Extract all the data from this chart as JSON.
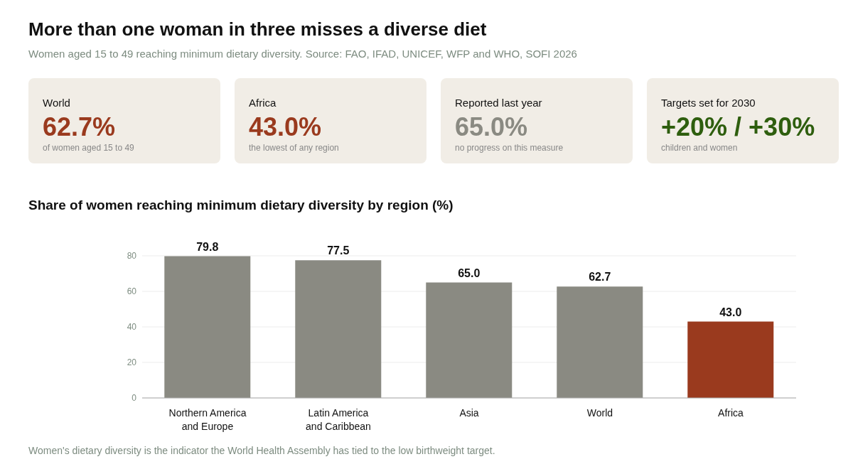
{
  "chart_data": [
    {
      "type": "other",
      "title": "More than one woman in three misses a diverse diet",
      "subtitle": "Women aged 15 to 49 reaching minimum dietary diversity. Source: FAO, IFAD, UNICEF, WFP and WHO, SOFI 2026"
    },
    {
      "type": "other",
      "title": "World",
      "annotations": [
        "62.7%",
        "of women aged 15 to 49"
      ],
      "color": "#9a3a1e"
    },
    {
      "type": "other",
      "title": "Africa",
      "annotations": [
        "43.0%",
        "the lowest of any region"
      ],
      "color": "#9a3a1e"
    },
    {
      "type": "other",
      "title": "Reported last year",
      "annotations": [
        "65.0%",
        "no progress on this measure"
      ],
      "color": "#8a8a82"
    },
    {
      "type": "other",
      "title": "Targets set for 2030",
      "annotations": [
        "+20% / +30%",
        "children and women"
      ],
      "color": "#2e5e0e"
    },
    {
      "type": "bar",
      "title": "Share of women reaching minimum dietary diversity by region (%)",
      "categories": [
        "Northern America and Europe",
        "Latin America and Caribbean",
        "Asia",
        "World",
        "Africa"
      ],
      "values": [
        79.8,
        77.5,
        65.0,
        62.7,
        43.0
      ],
      "colors": [
        "#8a8a82",
        "#8a8a82",
        "#8a8a82",
        "#8a8a82",
        "#9a3a1e"
      ],
      "value_labels": [
        "79.8",
        "77.5",
        "65.0",
        "62.7",
        "43.0"
      ],
      "ylim": [
        0,
        80
      ],
      "yticks": [
        0,
        20,
        40,
        60,
        80
      ],
      "grid": "y",
      "legend": false,
      "annotations": [
        "Women's dietary diversity is the indicator the World Health Assembly has tied to the low birthweight target."
      ]
    }
  ]
}
